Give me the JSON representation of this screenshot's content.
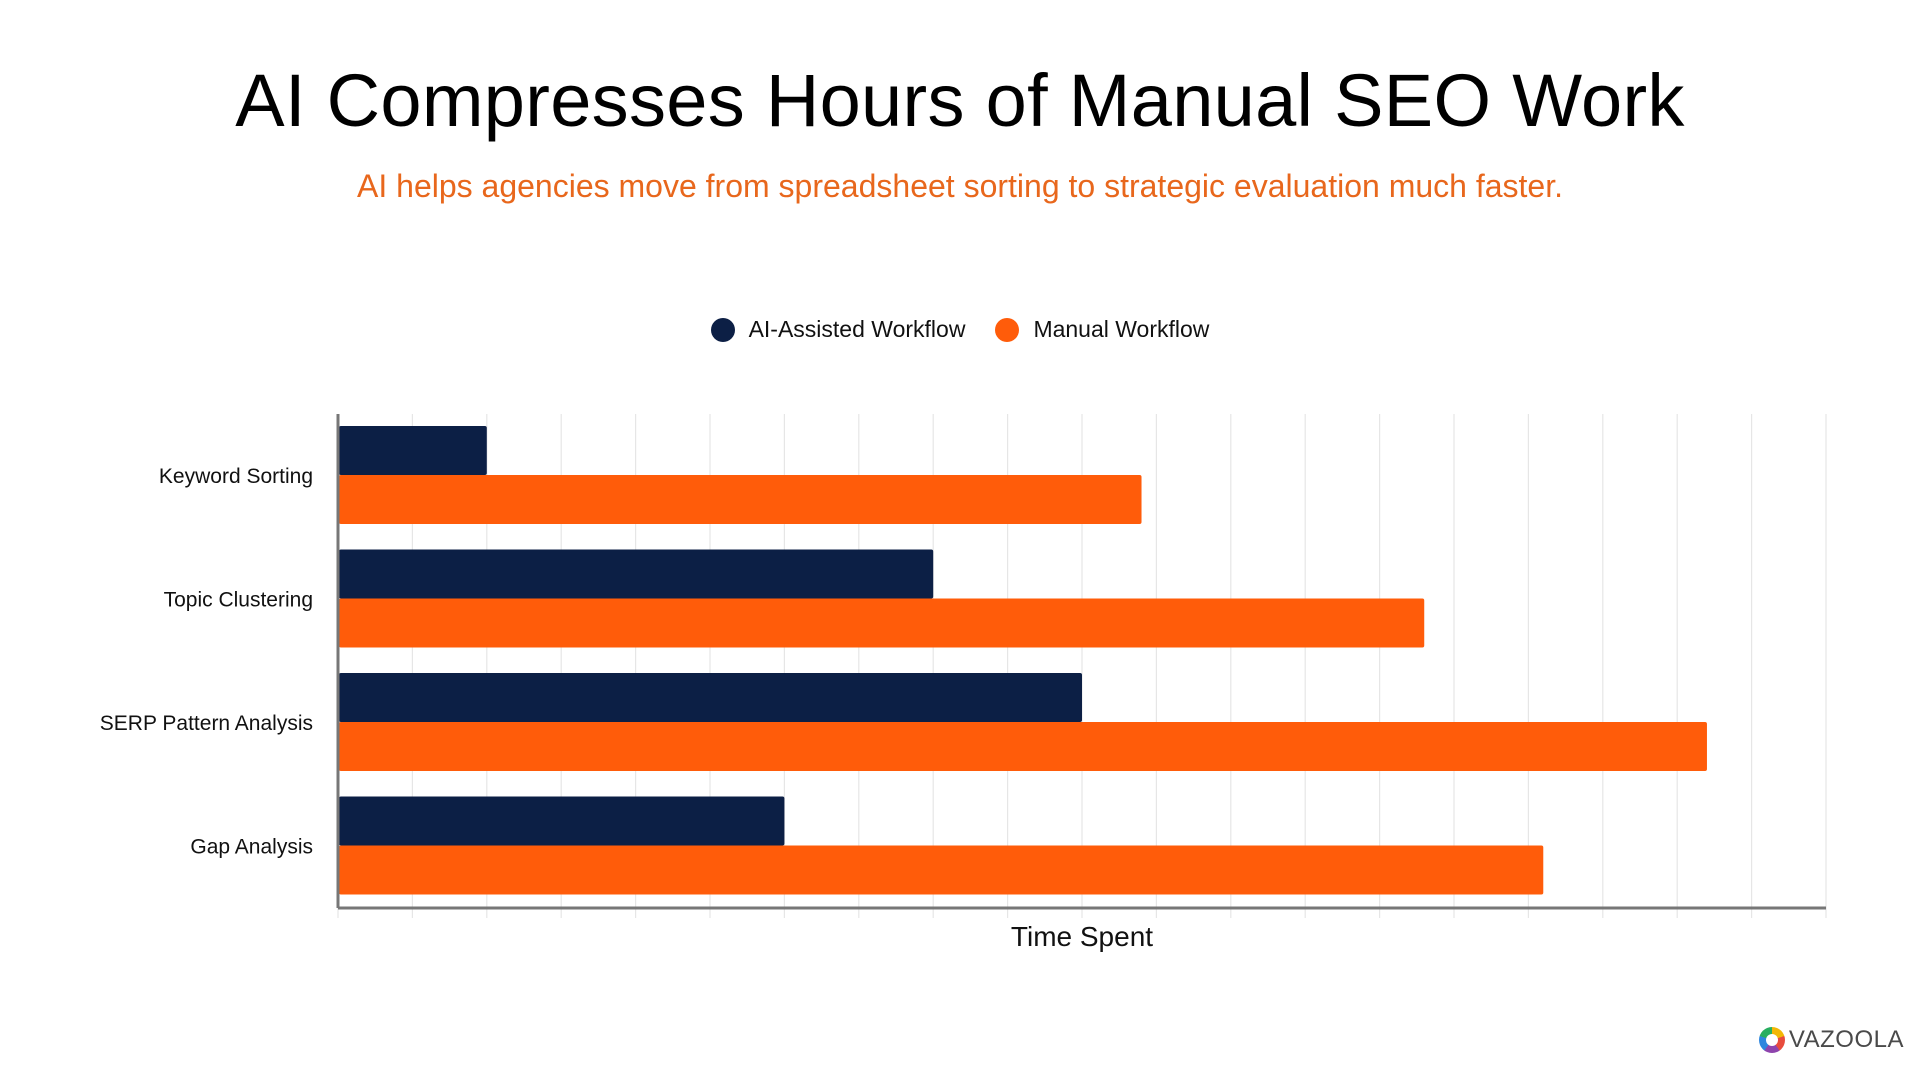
{
  "colors": {
    "ai": "#0c1f45",
    "manual": "#ff5c0a",
    "subtitle": "#e8671c",
    "grid": "#e6e6e6",
    "axis": "#777777"
  },
  "brand": {
    "logo_text": "VAZOOLA",
    "logo_icon": "vazoola-ring-logo"
  },
  "chart_data": {
    "type": "bar",
    "orientation": "horizontal",
    "title": "AI Compresses Hours of Manual SEO Work",
    "subtitle": "AI helps agencies move from spreadsheet sorting to strategic evaluation much faster.",
    "xlabel": "Time Spent",
    "ylabel": "",
    "xlim": [
      0,
      20
    ],
    "grid": true,
    "tick_labels_shown": false,
    "legend_placement": "top-center",
    "categories": [
      "Keyword Sorting",
      "Topic Clustering",
      "SERP Pattern Analysis",
      "Gap Analysis"
    ],
    "series": [
      {
        "name": "AI-Assisted Workflow",
        "values": [
          2,
          8,
          10,
          6
        ]
      },
      {
        "name": "Manual Workflow",
        "values": [
          10.8,
          14.6,
          18.4,
          16.2
        ]
      }
    ]
  }
}
